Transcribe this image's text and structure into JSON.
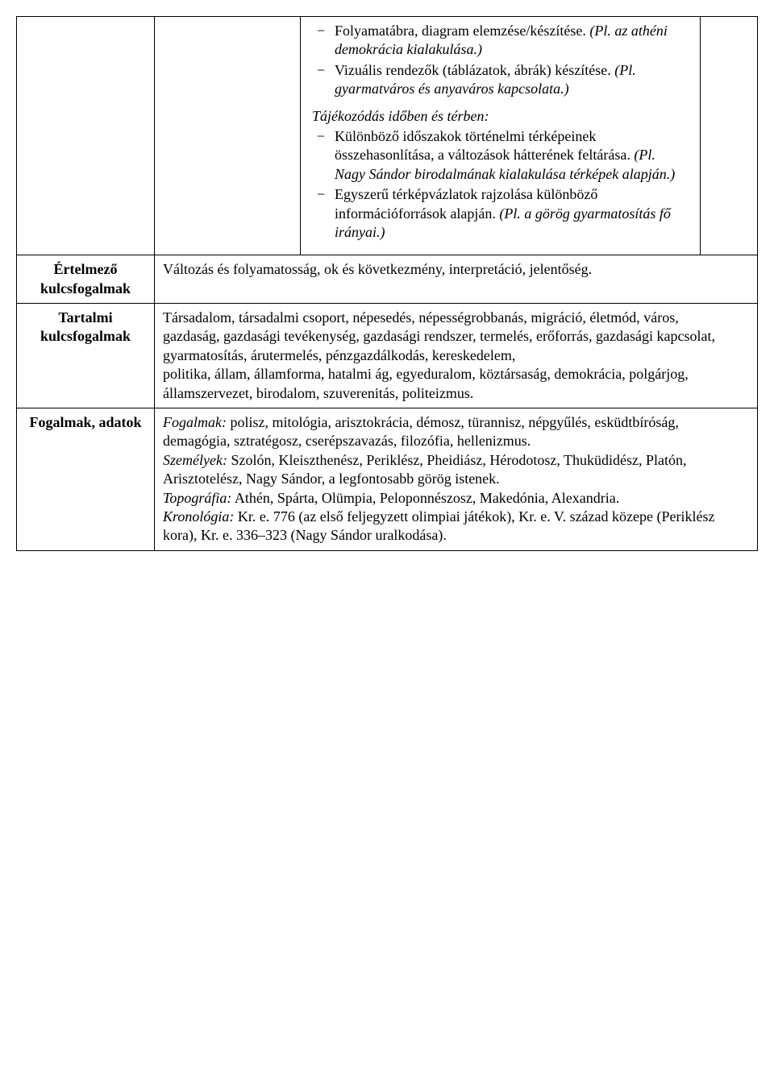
{
  "row1": {
    "block1": {
      "items": [
        {
          "pre": "Folyamatábra, diagram elemzése/készítése. ",
          "ital": "(Pl. az athéni demokrácia kialakulása.)"
        },
        {
          "pre": "Vizuális rendezők (táblázatok, ábrák) készítése. ",
          "ital": "(Pl. gyarmatváros és anyaváros kapcsolata.)"
        }
      ]
    },
    "block2": {
      "heading": "Tájékozódás időben és térben:",
      "items": [
        {
          "pre": "Különböző időszakok történelmi térképeinek összehasonlítása, a változások hátterének feltárása. ",
          "ital": "(Pl. Nagy Sándor birodalmának kialakulása térképek alapján.)"
        },
        {
          "pre": "Egyszerű térképvázlatok rajzolása különböző információforrások alapján. ",
          "ital": "(Pl. a görög gyarmatosítás fő irányai.)"
        }
      ]
    }
  },
  "row2": {
    "label": "Értelmező kulcsfogalmak",
    "text": "Változás és folyamatosság, ok és következmény, interpretáció, jelentőség."
  },
  "row3": {
    "label": "Tartalmi kulcsfogalmak",
    "line1": "Társadalom, társadalmi csoport, népesedés, népességrobbanás, migráció, életmód, város,",
    "line2": "gazdaság, gazdasági tevékenység, gazdasági rendszer, termelés, erőforrás, gazdasági kapcsolat, gyarmatosítás, árutermelés, pénzgazdálkodás, kereskedelem,",
    "line3": "politika, állam, államforma, hatalmi ág, egyeduralom, köztársaság, demokrácia, polgárjog, államszervezet, birodalom, szuverenitás, politeizmus."
  },
  "row4": {
    "label": "Fogalmak, adatok",
    "fogalmak_lbl": "Fogalmak:",
    "fogalmak_txt": " polisz, mitológia, arisztokrácia, démosz, türannisz, népgyűlés, esküdtbíróság, demagógia, sztratégosz, cserépszavazás, filozófia, hellenizmus.",
    "szemelyek_lbl": "Személyek:",
    "szemelyek_txt": " Szolón, Kleiszthenész, Periklész, Pheidiász, Hérodotosz, Thuküdidész, Platón, Arisztotelész, Nagy Sándor, a legfontosabb görög istenek.",
    "topografia_lbl": "Topográfia:",
    "topografia_txt": " Athén, Spárta, Olümpia, Peloponnészosz, Makedónia, Alexandria.",
    "kronologia_lbl": "Kronológia:",
    "kronologia_txt": " Kr. e. 776 (az első feljegyzett olimpiai játékok), Kr. e. V. század közepe (Periklész kora), Kr. e. 336–323 (Nagy Sándor uralkodása)."
  }
}
